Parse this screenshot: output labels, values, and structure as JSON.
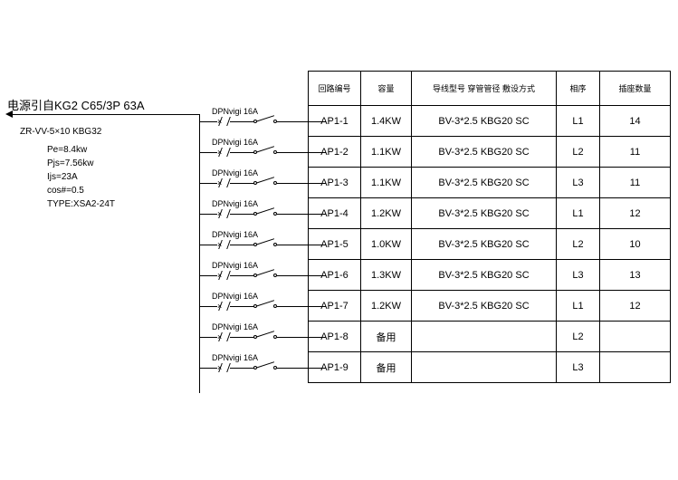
{
  "source": {
    "label": "电源引自KG2    C65/3P    63A",
    "cable": "ZR-VV-5×10 KBG32"
  },
  "params": {
    "pe": "Pe=8.4kw",
    "pjs": "Pjs=7.56kw",
    "ijs": "Ijs=23A",
    "cos": "cos#=0.5",
    "type": "TYPE:XSA2-24T"
  },
  "branch_label": "DPNvigi 16A",
  "columns": {
    "id": "回路编号",
    "cap": "容量",
    "wire": "导线型号 穿管管径 敷设方式",
    "phase": "相序",
    "count": "插座数量"
  },
  "rows": [
    {
      "id": "AP1-1",
      "cap": "1.4KW",
      "wire": "BV-3*2.5 KBG20 SC",
      "phase": "L1",
      "count": "14"
    },
    {
      "id": "AP1-2",
      "cap": "1.1KW",
      "wire": "BV-3*2.5 KBG20 SC",
      "phase": "L2",
      "count": "11"
    },
    {
      "id": "AP1-3",
      "cap": "1.1KW",
      "wire": "BV-3*2.5 KBG20 SC",
      "phase": "L3",
      "count": "11"
    },
    {
      "id": "AP1-4",
      "cap": "1.2KW",
      "wire": "BV-3*2.5 KBG20 SC",
      "phase": "L1",
      "count": "12"
    },
    {
      "id": "AP1-5",
      "cap": "1.0KW",
      "wire": "BV-3*2.5 KBG20 SC",
      "phase": "L2",
      "count": "10"
    },
    {
      "id": "AP1-6",
      "cap": "1.3KW",
      "wire": "BV-3*2.5 KBG20 SC",
      "phase": "L3",
      "count": "13"
    },
    {
      "id": "AP1-7",
      "cap": "1.2KW",
      "wire": "BV-3*2.5 KBG20 SC",
      "phase": "L1",
      "count": "12"
    },
    {
      "id": "AP1-8",
      "cap": "备用",
      "wire": "",
      "phase": "L2",
      "count": ""
    },
    {
      "id": "AP1-9",
      "cap": "备用",
      "wire": "",
      "phase": "L3",
      "count": ""
    }
  ],
  "layout": {
    "branch_top_first": 134,
    "branch_spacing": 34,
    "branch_count": 9
  },
  "style": {
    "bg": "#ffffff",
    "line": "#000000",
    "font_main": 13,
    "font_small": 10,
    "font_table": 11
  }
}
